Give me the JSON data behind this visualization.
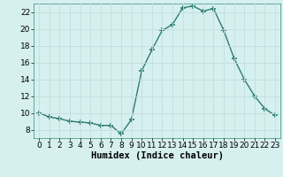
{
  "x": [
    0,
    1,
    2,
    3,
    4,
    5,
    6,
    7,
    8,
    9,
    10,
    11,
    12,
    13,
    14,
    15,
    16,
    17,
    18,
    19,
    20,
    21,
    22,
    23
  ],
  "y": [
    10,
    9.5,
    9.3,
    9.0,
    8.9,
    8.8,
    8.5,
    8.5,
    7.5,
    9.2,
    15.0,
    17.5,
    19.8,
    20.5,
    22.5,
    22.7,
    22.1,
    22.4,
    19.8,
    16.5,
    14.0,
    12.0,
    10.5,
    9.7
  ],
  "line_color": "#2e7d6e",
  "marker": "+",
  "marker_size": 5,
  "marker_lw": 1.2,
  "bg_color": "#d6f0ef",
  "grid_color": "#c2dede",
  "xlabel": "Humidex (Indice chaleur)",
  "xlim": [
    -0.5,
    23.5
  ],
  "ylim": [
    7.0,
    23.0
  ],
  "yticks": [
    8,
    10,
    12,
    14,
    16,
    18,
    20,
    22
  ],
  "xticks": [
    0,
    1,
    2,
    3,
    4,
    5,
    6,
    7,
    8,
    9,
    10,
    11,
    12,
    13,
    14,
    15,
    16,
    17,
    18,
    19,
    20,
    21,
    22,
    23
  ],
  "xlabel_fontsize": 7.5,
  "tick_fontsize": 6.5,
  "line_width": 1.0,
  "spine_color": "#3a8a7a"
}
